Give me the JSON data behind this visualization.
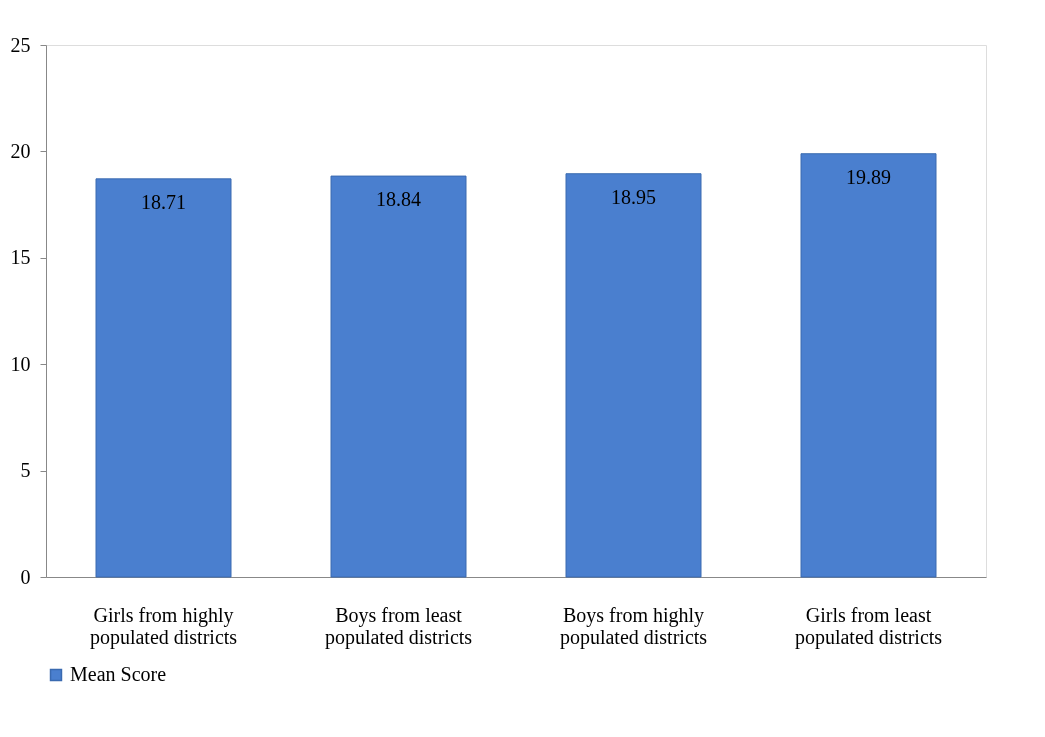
{
  "chart_data": {
    "type": "bar",
    "categories": [
      "Girls from highly populated districts",
      "Boys from least populated districts",
      "Boys from highly populated districts",
      "Girls from least populated districts"
    ],
    "series": [
      {
        "name": "Mean Score",
        "color": "#4a7fcf",
        "values": [
          18.71,
          18.84,
          18.95,
          19.89
        ]
      }
    ],
    "ylim": [
      0,
      25
    ],
    "yticks": [
      0,
      5,
      10,
      15,
      20,
      25
    ],
    "grid": false,
    "legend": "bottom",
    "data_labels": true
  }
}
